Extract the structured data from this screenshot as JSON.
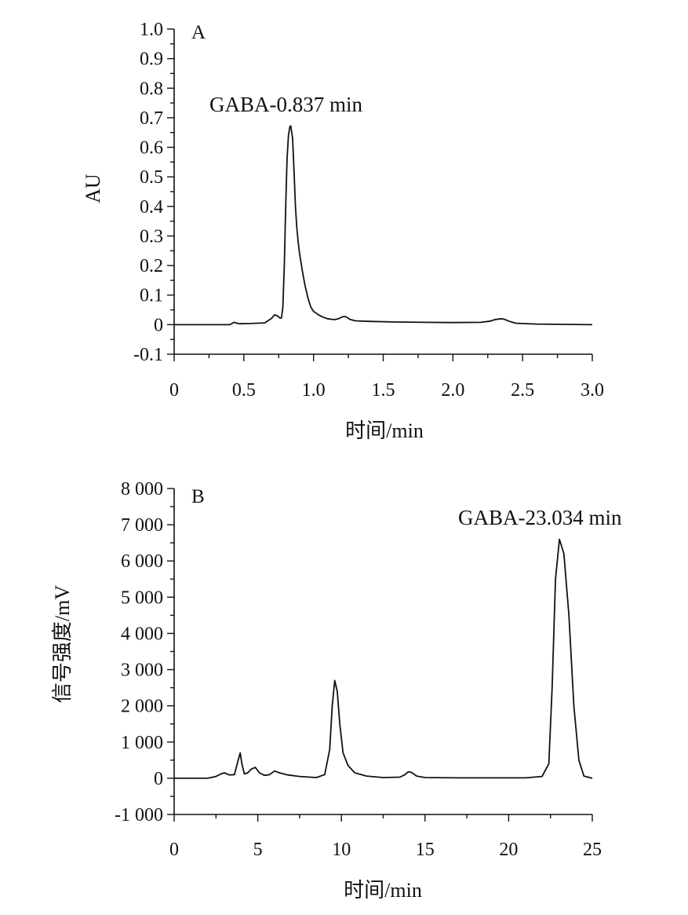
{
  "chart_data": [
    {
      "type": "line",
      "panel_label": "A",
      "ylabel": "AU",
      "xlabel": "时间/min",
      "xlim": [
        0,
        3.0
      ],
      "ylim": [
        -0.1,
        1.0
      ],
      "x_ticks": [
        "0",
        "0.5",
        "1.0",
        "1.5",
        "2.0",
        "2.5",
        "3.0"
      ],
      "x_tick_values": [
        0,
        0.5,
        1.0,
        1.5,
        2.0,
        2.5,
        3.0
      ],
      "y_ticks": [
        "1.0",
        "0.9",
        "0.8",
        "0.7",
        "0.6",
        "0.5",
        "0.4",
        "0.3",
        "0.2",
        "0.1",
        "0",
        "-0.1"
      ],
      "y_tick_values": [
        1.0,
        0.9,
        0.8,
        0.7,
        0.6,
        0.5,
        0.4,
        0.3,
        0.2,
        0.1,
        0,
        -0.1
      ],
      "grid": false,
      "annotations": [
        {
          "text": "GABA-0.837 min",
          "x": 0.837,
          "y": 0.672
        }
      ],
      "series": [
        {
          "x": [
            0,
            0.4,
            0.43,
            0.45,
            0.47,
            0.55,
            0.65,
            0.7,
            0.72,
            0.74,
            0.76,
            0.77,
            0.78,
            0.79,
            0.8,
            0.81,
            0.82,
            0.83,
            0.837,
            0.85,
            0.86,
            0.87,
            0.88,
            0.89,
            0.9,
            0.92,
            0.94,
            0.96,
            0.98,
            1.0,
            1.03,
            1.06,
            1.1,
            1.15,
            1.18,
            1.2,
            1.22,
            1.24,
            1.26,
            1.3,
            1.4,
            1.6,
            1.8,
            2.0,
            2.2,
            2.27,
            2.3,
            2.33,
            2.35,
            2.37,
            2.4,
            2.45,
            2.6,
            2.8,
            3.0
          ],
          "y": [
            0.0,
            0.0,
            0.008,
            0.005,
            0.003,
            0.004,
            0.006,
            0.022,
            0.033,
            0.03,
            0.022,
            0.023,
            0.06,
            0.2,
            0.39,
            0.56,
            0.64,
            0.67,
            0.672,
            0.63,
            0.52,
            0.4,
            0.33,
            0.28,
            0.24,
            0.18,
            0.13,
            0.09,
            0.06,
            0.045,
            0.035,
            0.027,
            0.02,
            0.017,
            0.02,
            0.025,
            0.028,
            0.025,
            0.018,
            0.013,
            0.011,
            0.009,
            0.008,
            0.007,
            0.008,
            0.012,
            0.017,
            0.019,
            0.02,
            0.018,
            0.012,
            0.005,
            0.002,
            0.001,
            0.0
          ]
        }
      ]
    },
    {
      "type": "line",
      "panel_label": "B",
      "ylabel": "信号强度/mV",
      "xlabel": "时间/min",
      "xlim": [
        0,
        25
      ],
      "ylim": [
        -1000,
        8000
      ],
      "x_ticks": [
        "0",
        "5",
        "10",
        "15",
        "20",
        "25"
      ],
      "x_tick_values": [
        0,
        5,
        10,
        15,
        20,
        25
      ],
      "y_ticks": [
        "8 000",
        "7 000",
        "6 000",
        "5 000",
        "4 000",
        "3 000",
        "2 000",
        "1 000",
        "0",
        "-1 000"
      ],
      "y_tick_values": [
        8000,
        7000,
        6000,
        5000,
        4000,
        3000,
        2000,
        1000,
        0,
        -1000
      ],
      "grid": false,
      "annotations": [
        {
          "text": "GABA-23.034 min",
          "x": 23.034,
          "y": 6600
        }
      ],
      "series": [
        {
          "x": [
            0,
            2.0,
            2.5,
            2.8,
            3.0,
            3.3,
            3.6,
            3.8,
            3.95,
            4.05,
            4.2,
            4.4,
            4.6,
            4.85,
            5.1,
            5.4,
            5.7,
            6.0,
            6.3,
            6.8,
            7.5,
            8.5,
            9.0,
            9.3,
            9.45,
            9.6,
            9.75,
            9.9,
            10.1,
            10.4,
            10.8,
            11.5,
            12.5,
            13.5,
            13.8,
            14.0,
            14.2,
            14.5,
            15.0,
            17.0,
            19.0,
            21.0,
            22.0,
            22.4,
            22.6,
            22.8,
            23.034,
            23.3,
            23.6,
            23.9,
            24.2,
            24.5,
            25.0
          ],
          "y": [
            0,
            0,
            50,
            120,
            150,
            90,
            100,
            450,
            700,
            400,
            120,
            150,
            250,
            300,
            150,
            80,
            100,
            200,
            150,
            90,
            50,
            20,
            100,
            800,
            2000,
            2700,
            2400,
            1500,
            700,
            350,
            150,
            60,
            20,
            30,
            100,
            180,
            160,
            60,
            20,
            10,
            10,
            10,
            50,
            400,
            2500,
            5500,
            6600,
            6200,
            4500,
            2000,
            500,
            60,
            0
          ]
        }
      ]
    }
  ]
}
